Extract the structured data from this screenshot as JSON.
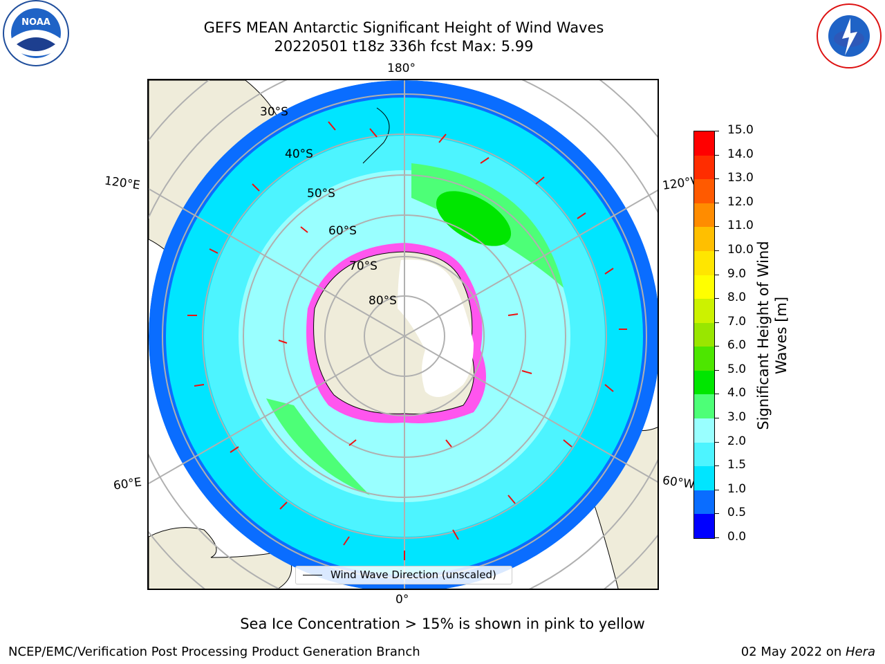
{
  "title": {
    "line1": "GEFS MEAN Antarctic Significant Height of Wind Waves",
    "line2": "20220501 t18z 336h fcst   Max: 5.99"
  },
  "map": {
    "lon_labels": {
      "top": "180°",
      "bottom": "0°",
      "upper_left": "120°E",
      "upper_right": "120°W",
      "lower_left": "60°E",
      "lower_right": "60°W"
    },
    "lat_labels": [
      "30°S",
      "40°S",
      "50°S",
      "60°S",
      "70°S",
      "80°S"
    ],
    "legend_label": "Wind Wave Direction (unscaled)"
  },
  "colorbar": {
    "label_line1": "Significant Height of Wind",
    "label_line2": "Waves [m]",
    "ticks": [
      "0.0",
      "0.5",
      "1.0",
      "1.5",
      "2.0",
      "3.0",
      "4.0",
      "5.0",
      "6.0",
      "7.0",
      "8.0",
      "9.0",
      "10.0",
      "11.0",
      "12.0",
      "13.0",
      "14.0",
      "15.0"
    ],
    "colors": [
      "#0000ff",
      "#0a6dff",
      "#00e5ff",
      "#4df4ff",
      "#99ffff",
      "#4dff77",
      "#00e600",
      "#4de600",
      "#99e600",
      "#ccf200",
      "#ffff00",
      "#ffe600",
      "#ffbf00",
      "#ff8c00",
      "#ff5a00",
      "#ff2d00",
      "#ff0000"
    ]
  },
  "note": "Sea Ice Concentration > 15% is shown in pink to yellow",
  "footer": {
    "left": "NCEP/EMC/Verification Post Processing Product Generation Branch",
    "date": "02 May 2022 on ",
    "machine": "Hera"
  },
  "logos": {
    "left": "noaa-logo",
    "right": "national-weather-service-logo"
  }
}
